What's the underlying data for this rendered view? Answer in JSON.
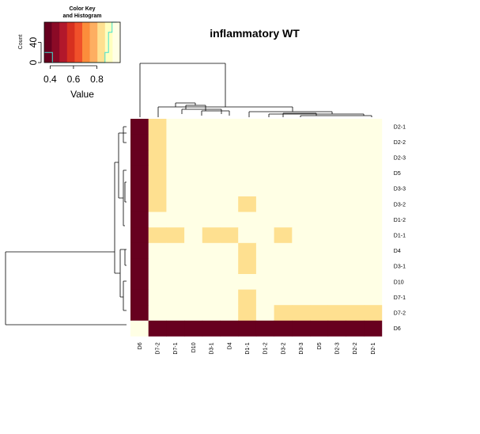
{
  "chart_data": {
    "type": "heatmap",
    "title": "inflammatory WT",
    "row_labels": [
      "D2-1",
      "D2-2",
      "D2-3",
      "D5",
      "D3-3",
      "D3-2",
      "D1-2",
      "D1-1",
      "D4",
      "D3-1",
      "D10",
      "D7-1",
      "D7-2",
      "D6"
    ],
    "col_labels": [
      "D6",
      "D7-2",
      "D7-1",
      "D10",
      "D3-1",
      "D4",
      "D1-1",
      "D1-2",
      "D3-2",
      "D3-3",
      "D5",
      "D2-3",
      "D2-2",
      "D2-1"
    ],
    "values": [
      [
        0.4,
        0.85,
        0.95,
        0.95,
        1.0,
        0.95,
        1.0,
        1.0,
        1.0,
        1.0,
        1.0,
        1.0,
        1.0,
        1.0
      ],
      [
        0.4,
        0.85,
        0.95,
        0.95,
        1.0,
        0.95,
        1.0,
        1.0,
        1.0,
        1.0,
        1.0,
        1.0,
        1.0,
        1.0
      ],
      [
        0.4,
        0.85,
        0.95,
        0.95,
        0.95,
        0.95,
        1.0,
        1.0,
        1.0,
        1.0,
        1.0,
        1.0,
        1.0,
        1.0
      ],
      [
        0.4,
        0.85,
        0.95,
        0.95,
        1.0,
        1.0,
        0.95,
        0.95,
        1.0,
        1.0,
        1.0,
        1.0,
        1.0,
        1.0
      ],
      [
        0.4,
        0.85,
        0.95,
        0.95,
        1.0,
        1.0,
        0.95,
        0.95,
        1.0,
        1.0,
        1.0,
        1.0,
        1.0,
        1.0
      ],
      [
        0.4,
        0.85,
        0.95,
        0.95,
        1.0,
        1.0,
        0.85,
        0.95,
        1.0,
        1.0,
        1.0,
        1.0,
        1.0,
        1.0
      ],
      [
        0.4,
        0.95,
        0.95,
        0.95,
        1.0,
        0.95,
        0.95,
        1.0,
        1.0,
        0.95,
        0.95,
        1.0,
        1.0,
        1.0
      ],
      [
        0.4,
        0.85,
        0.85,
        0.95,
        0.85,
        0.85,
        1.0,
        0.95,
        0.85,
        0.95,
        0.95,
        1.0,
        1.0,
        1.0
      ],
      [
        0.4,
        1.0,
        1.0,
        1.0,
        1.0,
        1.0,
        0.85,
        0.95,
        1.0,
        1.0,
        1.0,
        0.95,
        1.0,
        1.0
      ],
      [
        0.4,
        0.95,
        0.95,
        0.95,
        1.0,
        1.0,
        0.85,
        0.95,
        1.0,
        1.0,
        1.0,
        0.95,
        1.0,
        1.0
      ],
      [
        0.4,
        1.0,
        0.95,
        1.0,
        0.95,
        1.0,
        0.95,
        0.95,
        0.95,
        0.95,
        0.95,
        0.95,
        0.95,
        0.95
      ],
      [
        0.4,
        0.95,
        1.0,
        0.95,
        0.95,
        1.0,
        0.85,
        0.95,
        0.95,
        0.95,
        0.95,
        0.95,
        0.95,
        0.95
      ],
      [
        0.4,
        0.95,
        0.95,
        0.95,
        0.95,
        1.0,
        0.85,
        0.95,
        0.85,
        0.85,
        0.85,
        0.85,
        0.85,
        0.85
      ],
      [
        1.0,
        0.4,
        0.4,
        0.4,
        0.4,
        0.4,
        0.4,
        0.4,
        0.4,
        0.4,
        0.4,
        0.4,
        0.4,
        0.4
      ]
    ],
    "color_key": {
      "title_line1": "Color Key",
      "title_line2": "and Histogram",
      "xlabel": "Value",
      "ylabel": "Count",
      "x_ticks": [
        "0.4",
        "0.6",
        "0.8"
      ],
      "y_ticks": [
        "0",
        "40"
      ],
      "colors": [
        "#67001F",
        "#8B0A26",
        "#B2182B",
        "#D7301F",
        "#F0502A",
        "#FC8D3B",
        "#FDAE61",
        "#FEE090",
        "#FFFFBF",
        "#FFFFE5"
      ],
      "histogram_color": "#40E0D0"
    },
    "legend_placement": "top-left",
    "grid": false
  }
}
